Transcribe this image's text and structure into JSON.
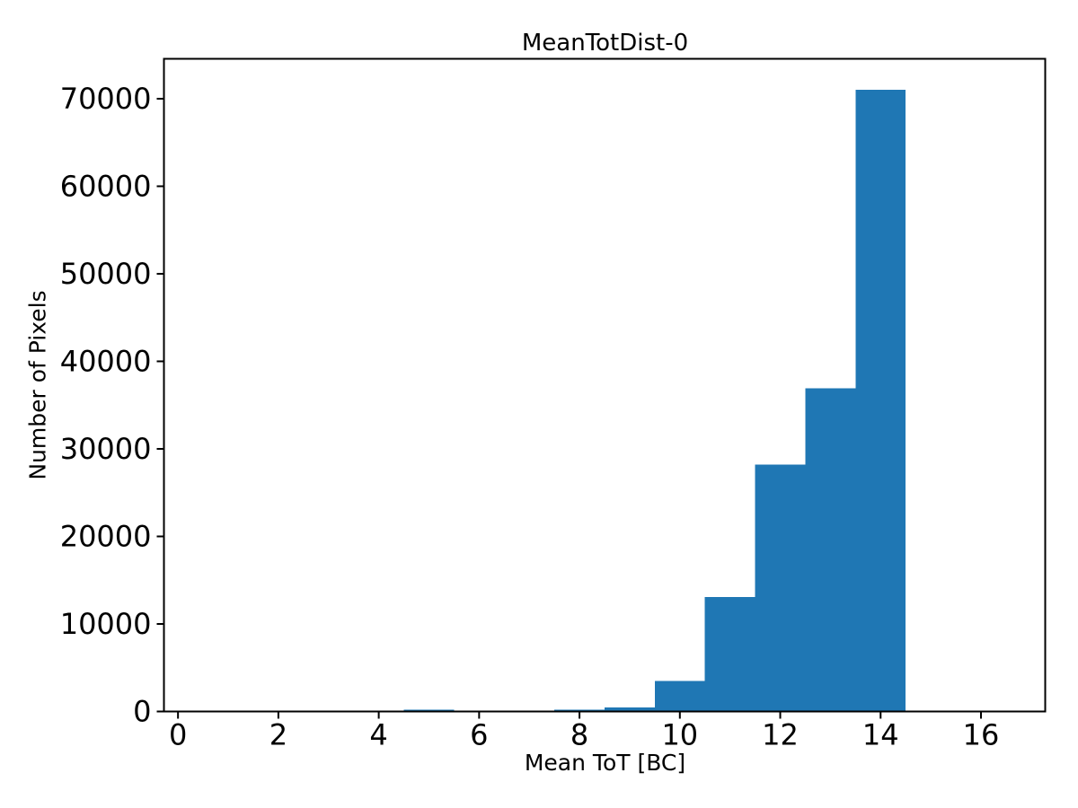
{
  "chart_data": {
    "type": "bar",
    "subtype": "histogram",
    "title": "MeanTotDist-0",
    "xlabel": "Mean ToT [BC]",
    "ylabel": "Number of Pixels",
    "xlim": [
      -0.28,
      17.28
    ],
    "ylim": [
      0,
      74560
    ],
    "x_ticks": [
      0,
      2,
      4,
      6,
      8,
      10,
      12,
      14,
      16
    ],
    "y_ticks": [
      0,
      10000,
      20000,
      30000,
      40000,
      50000,
      60000,
      70000
    ],
    "grid": "off",
    "legend": "none",
    "bar_color": "#1f77b4",
    "axis_color": "#000000",
    "bin_width": 1,
    "bins": [
      {
        "x0": 4.5,
        "x1": 5.5,
        "count": 230
      },
      {
        "x0": 7.5,
        "x1": 8.5,
        "count": 200
      },
      {
        "x0": 8.5,
        "x1": 9.5,
        "count": 480
      },
      {
        "x0": 9.5,
        "x1": 10.5,
        "count": 3500
      },
      {
        "x0": 10.5,
        "x1": 11.5,
        "count": 13100
      },
      {
        "x0": 11.5,
        "x1": 12.5,
        "count": 28200
      },
      {
        "x0": 12.5,
        "x1": 13.5,
        "count": 36900
      },
      {
        "x0": 13.5,
        "x1": 14.5,
        "count": 71000
      }
    ]
  }
}
